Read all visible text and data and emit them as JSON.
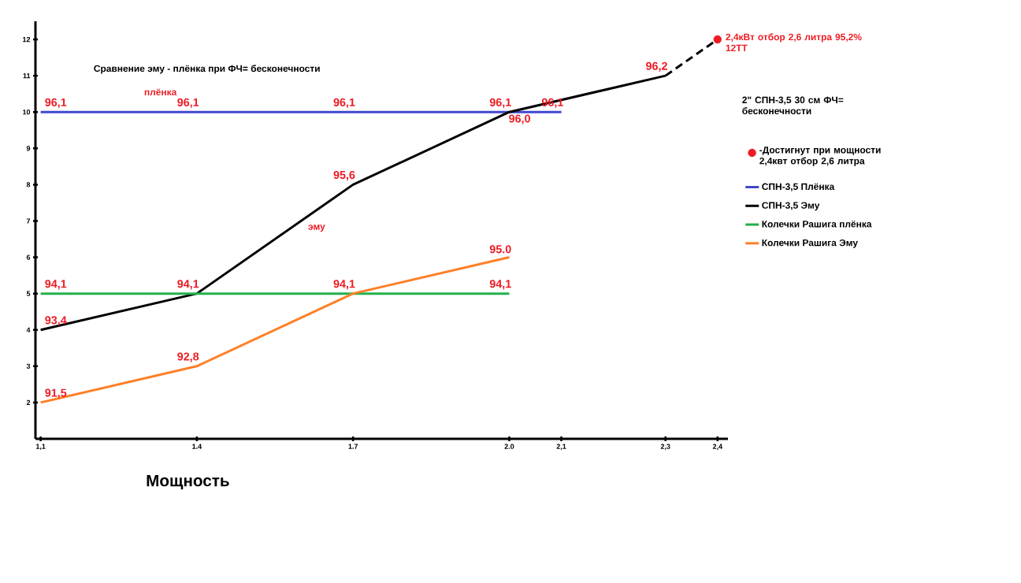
{
  "chart_data": {
    "type": "line",
    "title": "Сравнение эму - плёнка при ФЧ= бесконечности",
    "xlabel": "Мощность",
    "xlim": [
      1.09,
      2.42
    ],
    "ylim": [
      1,
      12.5
    ],
    "xticks": [
      {
        "value": 1.1,
        "label": "1,1"
      },
      {
        "value": 1.4,
        "label": "1.4"
      },
      {
        "value": 1.7,
        "label": "1.7"
      },
      {
        "value": 2.0,
        "label": "2.0"
      },
      {
        "value": 2.1,
        "label": "2,1"
      },
      {
        "value": 2.3,
        "label": "2,3"
      },
      {
        "value": 2.4,
        "label": "2,4"
      }
    ],
    "yticks": [
      2,
      3,
      4,
      5,
      6,
      7,
      8,
      9,
      10,
      11,
      12
    ],
    "legend": "right",
    "series": [
      {
        "name": "СПН-3,5 Плёнка",
        "color": "#3f48cc",
        "x": [
          1.1,
          1.4,
          1.7,
          2.0,
          2.1
        ],
        "values": [
          10,
          10,
          10,
          10,
          10
        ]
      },
      {
        "name": "СПН-3,5 Эму",
        "color": "#000000",
        "x": [
          1.1,
          1.4,
          1.7,
          2.0,
          2.3
        ],
        "values": [
          4,
          5,
          8,
          10,
          11
        ]
      },
      {
        "name": "Колечки Рашига плёнка",
        "color": "#22b14c",
        "x": [
          1.1,
          1.4,
          1.7,
          2.0
        ],
        "values": [
          5,
          5,
          5,
          5
        ]
      },
      {
        "name": "Колечки Рашига  Эму",
        "color": "#ff7f27",
        "x": [
          1.1,
          1.4,
          1.7,
          2.0
        ],
        "values": [
          2,
          3,
          5,
          6
        ]
      },
      {
        "type": "line",
        "line_style": "dashed",
        "color": "#000000",
        "x": [
          2.3,
          2.4
        ],
        "values": [
          11,
          12
        ]
      },
      {
        "type": "scatter",
        "marker": "circle",
        "color": "#ed1c24",
        "x": [
          2.4
        ],
        "values": [
          12
        ]
      }
    ],
    "annotations": [
      "плёнка",
      "эму",
      {
        "text": "2,4кВт отбор 2,6 литра  95,2%  12ТТ",
        "x": 2.4,
        "y": 12
      },
      "2\" СПН-3,5  30 см ФЧ= бесконечности",
      "-Достигнут при мощности 2,4квт отбор 2,6 литра",
      {
        "text": "96,1",
        "x": 1.1,
        "y": 10
      },
      {
        "text": "96,1",
        "x": 1.4,
        "y": 10
      },
      {
        "text": "96,1",
        "x": 1.7,
        "y": 10
      },
      {
        "text": "96,1",
        "x": 2.0,
        "y": 10
      },
      {
        "text": "96,1",
        "x": 2.1,
        "y": 10
      },
      {
        "text": "93,4",
        "x": 1.1,
        "y": 4
      },
      {
        "text": "94,1",
        "x": 1.4,
        "y": 5
      },
      {
        "text": "95,6",
        "x": 1.7,
        "y": 8
      },
      {
        "text": "96,0",
        "x": 2.0,
        "y": 10
      },
      {
        "text": "96,2",
        "x": 2.3,
        "y": 11
      },
      {
        "text": "94,1",
        "x": 1.1,
        "y": 5
      },
      {
        "text": "94,1",
        "x": 2.0,
        "y": 5
      },
      {
        "text": "91,5",
        "x": 1.1,
        "y": 2
      },
      {
        "text": "92,8",
        "x": 1.4,
        "y": 3
      },
      {
        "text": "94,1",
        "x": 1.7,
        "y": 5
      },
      {
        "text": "95.0",
        "x": 2.0,
        "y": 6
      }
    ]
  }
}
